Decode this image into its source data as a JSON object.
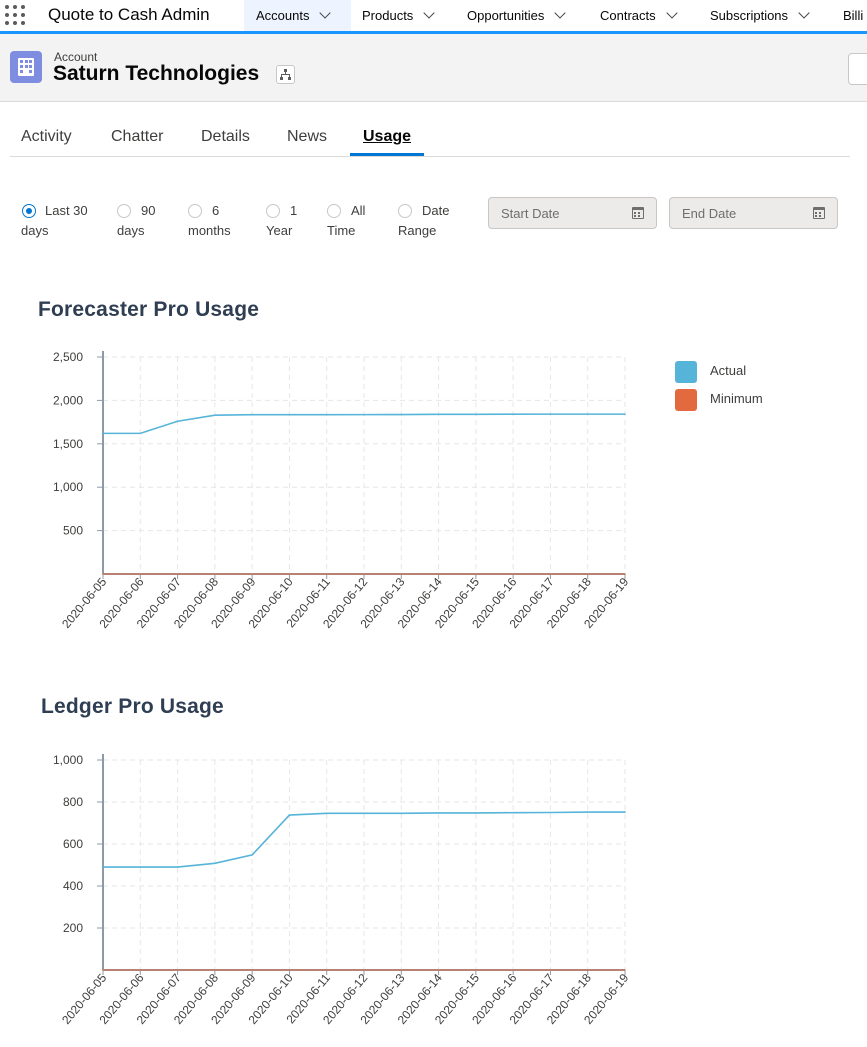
{
  "nav": {
    "app_name": "Quote to Cash Admin",
    "items": [
      {
        "label": "Accounts",
        "active": true
      },
      {
        "label": "Products"
      },
      {
        "label": "Opportunities"
      },
      {
        "label": "Contracts"
      },
      {
        "label": "Subscriptions"
      },
      {
        "label": "Billi"
      }
    ]
  },
  "record": {
    "entity_label": "Account",
    "title": "Saturn Technologies"
  },
  "tabs": [
    {
      "label": "Activity"
    },
    {
      "label": "Chatter"
    },
    {
      "label": "Details"
    },
    {
      "label": "News"
    },
    {
      "label": "Usage",
      "active": true
    }
  ],
  "range_filter": {
    "options": [
      {
        "line1": "Last 30",
        "line2": "days",
        "checked": true
      },
      {
        "line1": "90",
        "line2": "days"
      },
      {
        "line1": "6",
        "line2": "months"
      },
      {
        "line1": "1",
        "line2": "Year"
      },
      {
        "line1": "All",
        "line2": "Time"
      },
      {
        "line1": "Date",
        "line2": "Range"
      }
    ],
    "start_date_placeholder": "Start Date",
    "end_date_placeholder": "End Date"
  },
  "colors": {
    "actual": "#56b4d9",
    "minimum": "#e36a3e",
    "accent": "#0176d3"
  },
  "chart_data": [
    {
      "type": "line",
      "title": "Forecaster Pro Usage",
      "x": [
        "2020-06-05",
        "2020-06-06",
        "2020-06-07",
        "2020-06-08",
        "2020-06-09",
        "2020-06-10",
        "2020-06-11",
        "2020-06-12",
        "2020-06-13",
        "2020-06-14",
        "2020-06-15",
        "2020-06-16",
        "2020-06-17",
        "2020-06-18",
        "2020-06-19"
      ],
      "yticks": [
        "2,500",
        "2,000",
        "1,500",
        "1,000",
        "500"
      ],
      "ylim": [
        0,
        2500
      ],
      "grid": true,
      "legend_position": "right",
      "series": [
        {
          "name": "Actual",
          "values": [
            1620,
            1620,
            1760,
            1830,
            1835,
            1835,
            1835,
            1836,
            1837,
            1840,
            1840,
            1841,
            1842,
            1842,
            1842
          ]
        },
        {
          "name": "Minimum",
          "values": [
            0,
            0,
            0,
            0,
            0,
            0,
            0,
            0,
            0,
            0,
            0,
            0,
            0,
            0,
            0
          ]
        }
      ]
    },
    {
      "type": "line",
      "title": "Ledger Pro Usage",
      "x": [
        "2020-06-05",
        "2020-06-06",
        "2020-06-07",
        "2020-06-08",
        "2020-06-09",
        "2020-06-10",
        "2020-06-11",
        "2020-06-12",
        "2020-06-13",
        "2020-06-14",
        "2020-06-15",
        "2020-06-16",
        "2020-06-17",
        "2020-06-18",
        "2020-06-19"
      ],
      "yticks": [
        "1,000",
        "800",
        "600",
        "400",
        "200"
      ],
      "ylim": [
        0,
        1000
      ],
      "grid": true,
      "series": [
        {
          "name": "Actual",
          "values": [
            490,
            490,
            490,
            508,
            548,
            738,
            746,
            746,
            746,
            748,
            748,
            749,
            750,
            752,
            752
          ]
        },
        {
          "name": "Minimum",
          "values": [
            0,
            0,
            0,
            0,
            0,
            0,
            0,
            0,
            0,
            0,
            0,
            0,
            0,
            0,
            0
          ]
        }
      ]
    }
  ]
}
